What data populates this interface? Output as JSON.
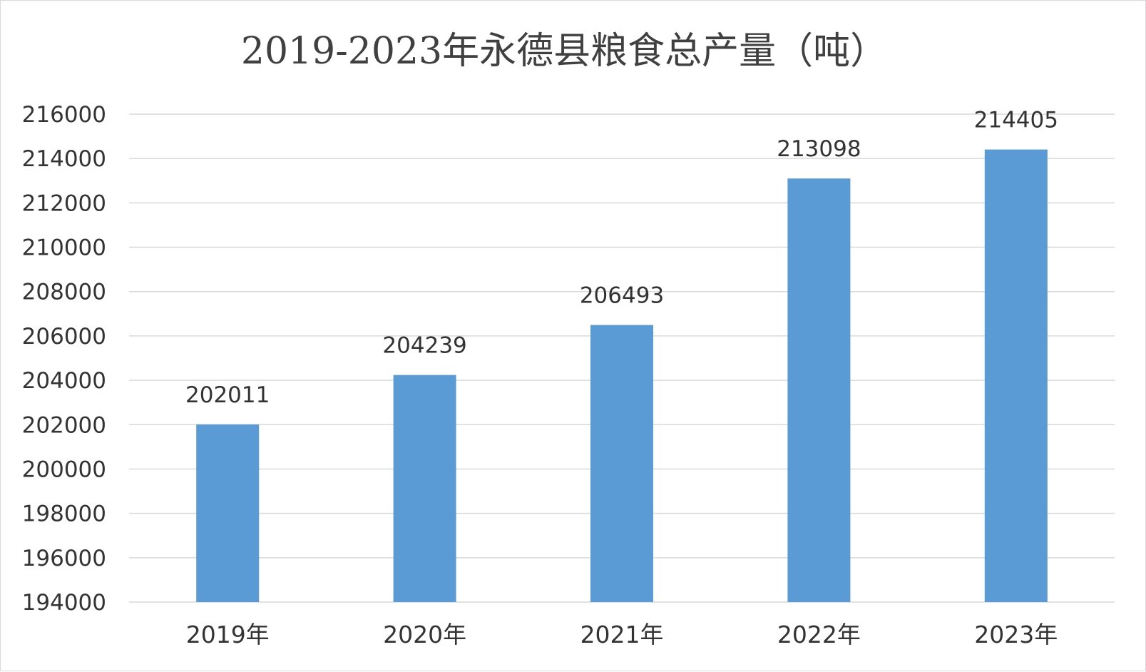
{
  "chart_data": {
    "type": "bar",
    "title": "2019-2023年永德县粮食总产量（吨）",
    "categories": [
      "2019年",
      "2020年",
      "2021年",
      "2022年",
      "2023年"
    ],
    "values": [
      202011,
      204239,
      206493,
      213098,
      214405
    ],
    "data_labels": [
      "202011",
      "204239",
      "206493",
      "213098",
      "214405"
    ],
    "ylim": [
      194000,
      216000
    ],
    "y_ticks": [
      194000,
      196000,
      198000,
      200000,
      202000,
      204000,
      206000,
      208000,
      210000,
      212000,
      214000,
      216000
    ],
    "y_tick_labels": [
      "194000",
      "196000",
      "198000",
      "200000",
      "202000",
      "204000",
      "206000",
      "208000",
      "210000",
      "212000",
      "214000",
      "216000"
    ],
    "grid": true,
    "legend": "none",
    "bar_color": "#5b9bd5",
    "grid_color": "#d9d9d9",
    "text_color": "#333333"
  }
}
